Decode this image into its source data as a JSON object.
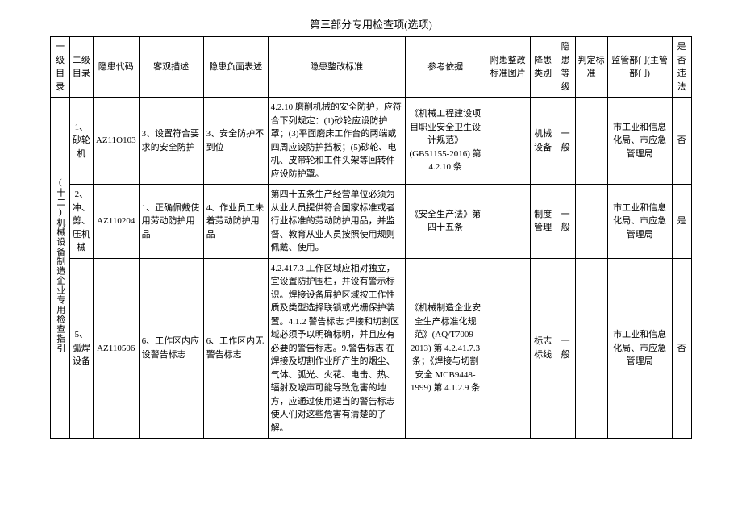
{
  "title": "第三部分专用检查项(选项)",
  "headers": {
    "col1": "一级目录",
    "col2": "二级目录",
    "col3": "隐患代码",
    "col4": "客观描述",
    "col5": "隐患负面表述",
    "col6": "隐患整改标准",
    "col7": "参考依据",
    "col8": "附患整改标准图片",
    "col9": "降患类别",
    "col10": "隐患等级",
    "col11": "判定标准",
    "col12": "监管部门(主管部门)",
    "col13": "是否违法"
  },
  "level1": "(十二)机械设备制造企业专用检查指引",
  "rows": [
    {
      "level2": "1、砂轮机",
      "code": "AZ11O103",
      "desc": "3、设置符合要求的安全防护",
      "neg": "3、安全防护不到位",
      "standard": "4.2.10 磨削机械的安全防护，应符合下列规定：(1)砂轮应设防护罩；(3)平面磨床工作台的两端或四周应设防护挡板；(5)砂轮、电机、皮带轮和工件头架等回转件应设防护罩。",
      "ref": "《机械工程建设项目职业安全卫生设计规范》(GB51155-2016) 第 4.2.10 条",
      "img": "",
      "cat": "机械设备",
      "grade": "一般",
      "judge": "",
      "dept": "市工业和信息化局、市应急管理局",
      "illegal": "否"
    },
    {
      "level2": "2、冲、剪、压机械",
      "code": "AZ110204",
      "desc": "1、正确佩戴使用劳动防护用品",
      "neg": "4、作业员工未着劳动防护用品",
      "standard": "第四十五条生产经营单位必须为从业人员提供符合国家标准或者行业标准的劳动防护用品，并监督、教育从业人员按照使用规则佩戴、使用。",
      "ref": "《安全生产法》第四十五条",
      "img": "",
      "cat": "制度管理",
      "grade": "一般",
      "judge": "",
      "dept": "市工业和信息化局、市应急管理局",
      "illegal": "是"
    },
    {
      "level2": "5、弧焊设备",
      "code": "AZ110506",
      "desc": "6、工作区内应设警告标志",
      "neg": "6、工作区内无警告标志",
      "standard": "4.2.417.3 工作区域应相对独立，宜设置防护围栏，并设有警示标识。焊接设备屏护区域按工作性质及类型选择联锁或光栅保护装置。4.1.2 警告标志 焊接和切割区域必须予以明确标明，并且应有必要的警告标志。9.警告标志 在焊接及切割作业所产生的烟尘、气体、弧光、火花、电击、热、辐射及噪声可能导致危害的地方，应通过使用适当的警告标志使人们对这些危害有清楚的了解。",
      "ref": "《机械制造企业安全生产标准化规范》(AQ/T7009-2013) 第 4.2.41.7.3 条；《焊接与切割安全 MCB9448-1999) 第 4.1.2.9 条",
      "img": "",
      "cat": "标志标线",
      "grade": "一般",
      "judge": "",
      "dept": "市工业和信息化局、市应急管理局",
      "illegal": "否"
    }
  ]
}
